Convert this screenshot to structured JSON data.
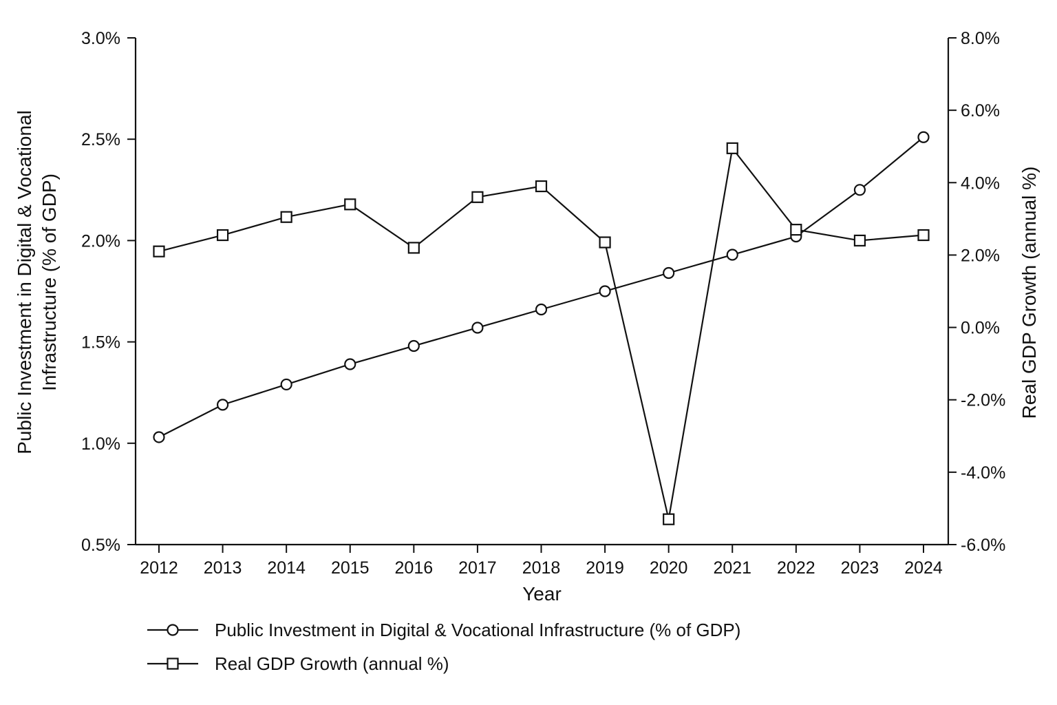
{
  "chart_data": {
    "type": "line",
    "title": "",
    "xlabel": "Year",
    "ylabel_left": "Public Investment in Digital & Vocational Infrastructure (% of GDP)",
    "ylabel_left_lines": [
      "Public Investment in Digital & Vocational",
      "Infrastructure (% of GDP)"
    ],
    "ylabel_right": "Real GDP Growth (annual %)",
    "categories": [
      "2012",
      "2013",
      "2014",
      "2015",
      "2016",
      "2017",
      "2018",
      "2019",
      "2020",
      "2021",
      "2022",
      "2023",
      "2024"
    ],
    "y_left": {
      "range": [
        0.5,
        3.0
      ],
      "ticks": [
        0.5,
        1.0,
        1.5,
        2.0,
        2.5,
        3.0
      ],
      "tick_labels": [
        "0.5%",
        "1.0%",
        "1.5%",
        "2.0%",
        "2.5%",
        "3.0%"
      ]
    },
    "y_right": {
      "range": [
        -6.0,
        8.0
      ],
      "ticks": [
        -6,
        -4,
        -2,
        0,
        2,
        4,
        6,
        8
      ],
      "tick_labels": [
        "-6.0%",
        "-4.0%",
        "-2.0%",
        "0.0%",
        "2.0%",
        "4.0%",
        "6.0%",
        "8.0%"
      ]
    },
    "grid": false,
    "legend_position": "bottom-center",
    "series": [
      {
        "name": "Public Investment in Digital & Vocational Infrastructure (% of GDP)",
        "axis": "left",
        "marker": "circle",
        "values": [
          1.03,
          1.19,
          1.29,
          1.39,
          1.48,
          1.57,
          1.66,
          1.75,
          1.84,
          1.93,
          2.02,
          2.25,
          2.51
        ]
      },
      {
        "name": "Real GDP Growth (annual %)",
        "axis": "right",
        "marker": "square",
        "values": [
          2.1,
          2.55,
          3.05,
          3.4,
          2.2,
          3.6,
          3.9,
          2.35,
          -5.3,
          4.95,
          2.7,
          2.4,
          2.55
        ]
      }
    ],
    "colors": {
      "line": "#111111",
      "marker_fill": "#ffffff",
      "background": "#ffffff"
    }
  }
}
